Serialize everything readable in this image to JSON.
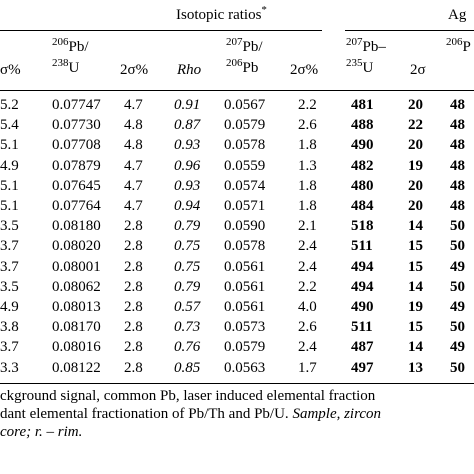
{
  "header": {
    "isotopic_ratios": "Isotopic ratios",
    "isotopic_ratios_mark": "*",
    "ages": "Ag",
    "columns": [
      {
        "key": "c0",
        "text": "σ%"
      },
      {
        "key": "c1",
        "sup": "206",
        "line1": "Pb/",
        "sup2": "238",
        "line2": "U"
      },
      {
        "key": "c2",
        "text": "2σ%"
      },
      {
        "key": "c3",
        "text": "Rho",
        "italic": true
      },
      {
        "key": "c4",
        "sup": "207",
        "line1": "Pb/",
        "sup2": "206",
        "line2": "Pb"
      },
      {
        "key": "c5",
        "text": "2σ%"
      },
      {
        "key": "c6",
        "sup": "207",
        "line1": "Pb–",
        "sup2": "235",
        "line2": "U"
      },
      {
        "key": "c7",
        "text": "2σ"
      },
      {
        "key": "c8",
        "sup": "206",
        "line1": "P"
      }
    ]
  },
  "rows": [
    [
      "5.2",
      "0.07747",
      "4.7",
      "0.91",
      "0.0567",
      "2.2",
      "481",
      "20",
      "48"
    ],
    [
      "5.4",
      "0.07730",
      "4.8",
      "0.87",
      "0.0579",
      "2.6",
      "488",
      "22",
      "48"
    ],
    [
      "5.1",
      "0.07708",
      "4.8",
      "0.93",
      "0.0578",
      "1.8",
      "490",
      "20",
      "48"
    ],
    [
      "4.9",
      "0.07879",
      "4.7",
      "0.96",
      "0.0559",
      "1.3",
      "482",
      "19",
      "48"
    ],
    [
      "5.1",
      "0.07645",
      "4.7",
      "0.93",
      "0.0574",
      "1.8",
      "480",
      "20",
      "48"
    ],
    [
      "5.1",
      "0.07764",
      "4.7",
      "0.94",
      "0.0571",
      "1.8",
      "484",
      "20",
      "48"
    ],
    [
      "3.5",
      "0.08180",
      "2.8",
      "0.79",
      "0.0590",
      "2.1",
      "518",
      "14",
      "50"
    ],
    [
      "3.7",
      "0.08020",
      "2.8",
      "0.75",
      "0.0578",
      "2.4",
      "511",
      "15",
      "50"
    ],
    [
      "3.7",
      "0.08001",
      "2.8",
      "0.75",
      "0.0561",
      "2.4",
      "494",
      "15",
      "49"
    ],
    [
      "3.5",
      "0.08062",
      "2.8",
      "0.79",
      "0.0561",
      "2.2",
      "494",
      "14",
      "50"
    ],
    [
      "4.9",
      "0.08013",
      "2.8",
      "0.57",
      "0.0561",
      "4.0",
      "490",
      "19",
      "49"
    ],
    [
      "3.8",
      "0.08170",
      "2.8",
      "0.73",
      "0.0573",
      "2.6",
      "511",
      "15",
      "50"
    ],
    [
      "3.7",
      "0.08016",
      "2.8",
      "0.76",
      "0.0579",
      "2.4",
      "487",
      "14",
      "49"
    ],
    [
      "3.3",
      "0.08122",
      "2.8",
      "0.85",
      "0.0563",
      "1.7",
      "497",
      "13",
      "50"
    ]
  ],
  "footnote": {
    "line1": "ckground signal, common Pb, laser induced elemental fraction",
    "line2_a": "dant elemental fractionation of Pb/Th and Pb/U. ",
    "line2_b": "Sample, zircon",
    "line3": "core; r. – rim."
  }
}
